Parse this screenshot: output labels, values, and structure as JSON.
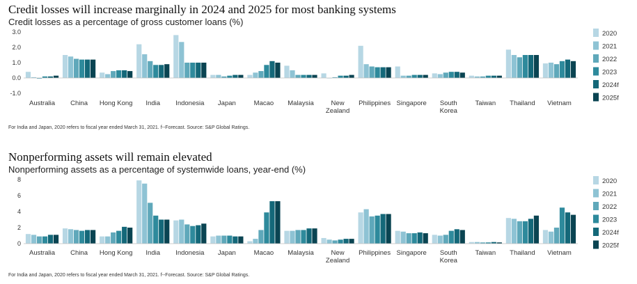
{
  "colors": [
    "#b7d7e4",
    "#8ec3d4",
    "#5fa8ba",
    "#2e8a9c",
    "#146879",
    "#0a4452"
  ],
  "chart_data": [
    {
      "type": "bar",
      "title": "Credit losses will increase marginally in 2024 and 2025 for most banking systems",
      "subtitle": "Credit losses as a percentage of gross customer loans (%)",
      "footnote": "For India and Japan, 2020 refers to fiscal year ended March 31, 2021. f--Forecast.  Source: S&P Global Ratings.",
      "categories": [
        "Australia",
        "China",
        "Hong Kong",
        "India",
        "Indonesia",
        "Japan",
        "Macao",
        "Malaysia",
        "New Zealand",
        "Philippines",
        "Singapore",
        "South Korea",
        "Taiwan",
        "Thailand",
        "Vietnam"
      ],
      "category_lines": [
        [
          "Australia"
        ],
        [
          "China"
        ],
        [
          "Hong Kong"
        ],
        [
          "India"
        ],
        [
          "Indonesia"
        ],
        [
          "Japan"
        ],
        [
          "Macao"
        ],
        [
          "Malaysia"
        ],
        [
          "New",
          "Zealand"
        ],
        [
          "Philippines"
        ],
        [
          "Singapore"
        ],
        [
          "South",
          "Korea"
        ],
        [
          "Taiwan"
        ],
        [
          "Thailand"
        ],
        [
          "Vietnam"
        ]
      ],
      "series": [
        {
          "name": "2020",
          "values": [
            0.4,
            1.5,
            0.35,
            2.2,
            2.8,
            0.2,
            0.2,
            0.8,
            0.3,
            2.1,
            0.75,
            0.3,
            0.15,
            1.85,
            0.95
          ]
        },
        {
          "name": "2021",
          "values": [
            0.05,
            1.4,
            0.25,
            1.55,
            2.35,
            0.2,
            0.35,
            0.5,
            0.0,
            0.9,
            0.15,
            0.25,
            0.1,
            1.5,
            1.0
          ]
        },
        {
          "name": "2022",
          "values": [
            -0.05,
            1.25,
            0.45,
            1.1,
            1.0,
            0.1,
            0.45,
            0.2,
            0.05,
            0.75,
            0.15,
            0.35,
            0.1,
            1.35,
            0.9
          ]
        },
        {
          "name": "2023",
          "values": [
            0.1,
            1.2,
            0.5,
            0.85,
            1.0,
            0.15,
            0.85,
            0.2,
            0.15,
            0.7,
            0.2,
            0.4,
            0.15,
            1.5,
            1.1
          ]
        },
        {
          "name": "2024f",
          "values": [
            0.1,
            1.2,
            0.5,
            0.85,
            1.0,
            0.2,
            1.1,
            0.2,
            0.15,
            0.7,
            0.2,
            0.4,
            0.15,
            1.5,
            1.2
          ]
        },
        {
          "name": "2025f",
          "values": [
            0.15,
            1.2,
            0.45,
            0.9,
            1.0,
            0.2,
            1.0,
            0.2,
            0.2,
            0.7,
            0.2,
            0.35,
            0.15,
            1.5,
            1.1
          ]
        }
      ],
      "ylim": [
        -1.0,
        3.0
      ],
      "yticks": [
        -1.0,
        0.0,
        1.0,
        2.0,
        3.0
      ],
      "ytick_labels": [
        "-1.0",
        "0.0",
        "1.0",
        "2.0",
        "3.0"
      ],
      "grid": false,
      "legend_position": "right"
    },
    {
      "type": "bar",
      "title": "Nonperforming assets will remain elevated",
      "subtitle": "Nonperforming assets as a percentage of systemwide loans, year-end (%)",
      "footnote": "For India and Japan, 2020 refers to fiscal year ended March 31, 2021.  f--Forecast.  Source: S&P Global Ratings.",
      "categories": [
        "Australia",
        "China",
        "Hong Kong",
        "India",
        "Indonesia",
        "Japan",
        "Macao",
        "Malaysia",
        "New Zealand",
        "Philippines",
        "Singapore",
        "South Korea",
        "Taiwan",
        "Thailand",
        "Vietnam"
      ],
      "category_lines": [
        [
          "Australia"
        ],
        [
          "China"
        ],
        [
          "Hong Kong"
        ],
        [
          "India"
        ],
        [
          "Indonesia"
        ],
        [
          "Japan"
        ],
        [
          "Macao"
        ],
        [
          "Malaysia"
        ],
        [
          "New",
          "Zealand"
        ],
        [
          "Philippines"
        ],
        [
          "Singapore"
        ],
        [
          "South",
          "Korea"
        ],
        [
          "Taiwan"
        ],
        [
          "Thailand"
        ],
        [
          "Vietnam"
        ]
      ],
      "series": [
        {
          "name": "2020",
          "values": [
            1.2,
            1.9,
            0.9,
            7.9,
            2.9,
            0.9,
            0.3,
            1.6,
            0.7,
            3.9,
            1.6,
            1.1,
            0.2,
            3.2,
            1.7
          ]
        },
        {
          "name": "2021",
          "values": [
            1.1,
            1.8,
            0.9,
            7.5,
            3.0,
            1.0,
            0.6,
            1.6,
            0.5,
            4.3,
            1.5,
            1.0,
            0.2,
            3.1,
            1.5
          ]
        },
        {
          "name": "2022",
          "values": [
            0.9,
            1.7,
            1.4,
            5.1,
            2.4,
            1.0,
            1.7,
            1.7,
            0.4,
            3.4,
            1.3,
            1.1,
            0.15,
            2.8,
            2.0
          ]
        },
        {
          "name": "2023",
          "values": [
            0.9,
            1.6,
            1.6,
            3.5,
            2.2,
            1.0,
            3.9,
            1.7,
            0.5,
            3.5,
            1.3,
            1.6,
            0.15,
            2.8,
            4.5
          ]
        },
        {
          "name": "2024f",
          "values": [
            1.1,
            1.7,
            2.1,
            3.0,
            2.3,
            0.9,
            5.3,
            1.9,
            0.6,
            3.7,
            1.4,
            1.8,
            0.2,
            3.1,
            3.9
          ]
        },
        {
          "name": "2025f",
          "values": [
            1.1,
            1.7,
            2.0,
            3.0,
            2.5,
            0.9,
            5.3,
            1.9,
            0.6,
            3.7,
            1.3,
            1.7,
            0.15,
            3.5,
            3.6
          ]
        }
      ],
      "ylim": [
        0,
        8
      ],
      "yticks": [
        0,
        2,
        4,
        6,
        8
      ],
      "ytick_labels": [
        "0",
        "2",
        "4",
        "6",
        "8"
      ],
      "grid": false,
      "legend_position": "right"
    }
  ]
}
